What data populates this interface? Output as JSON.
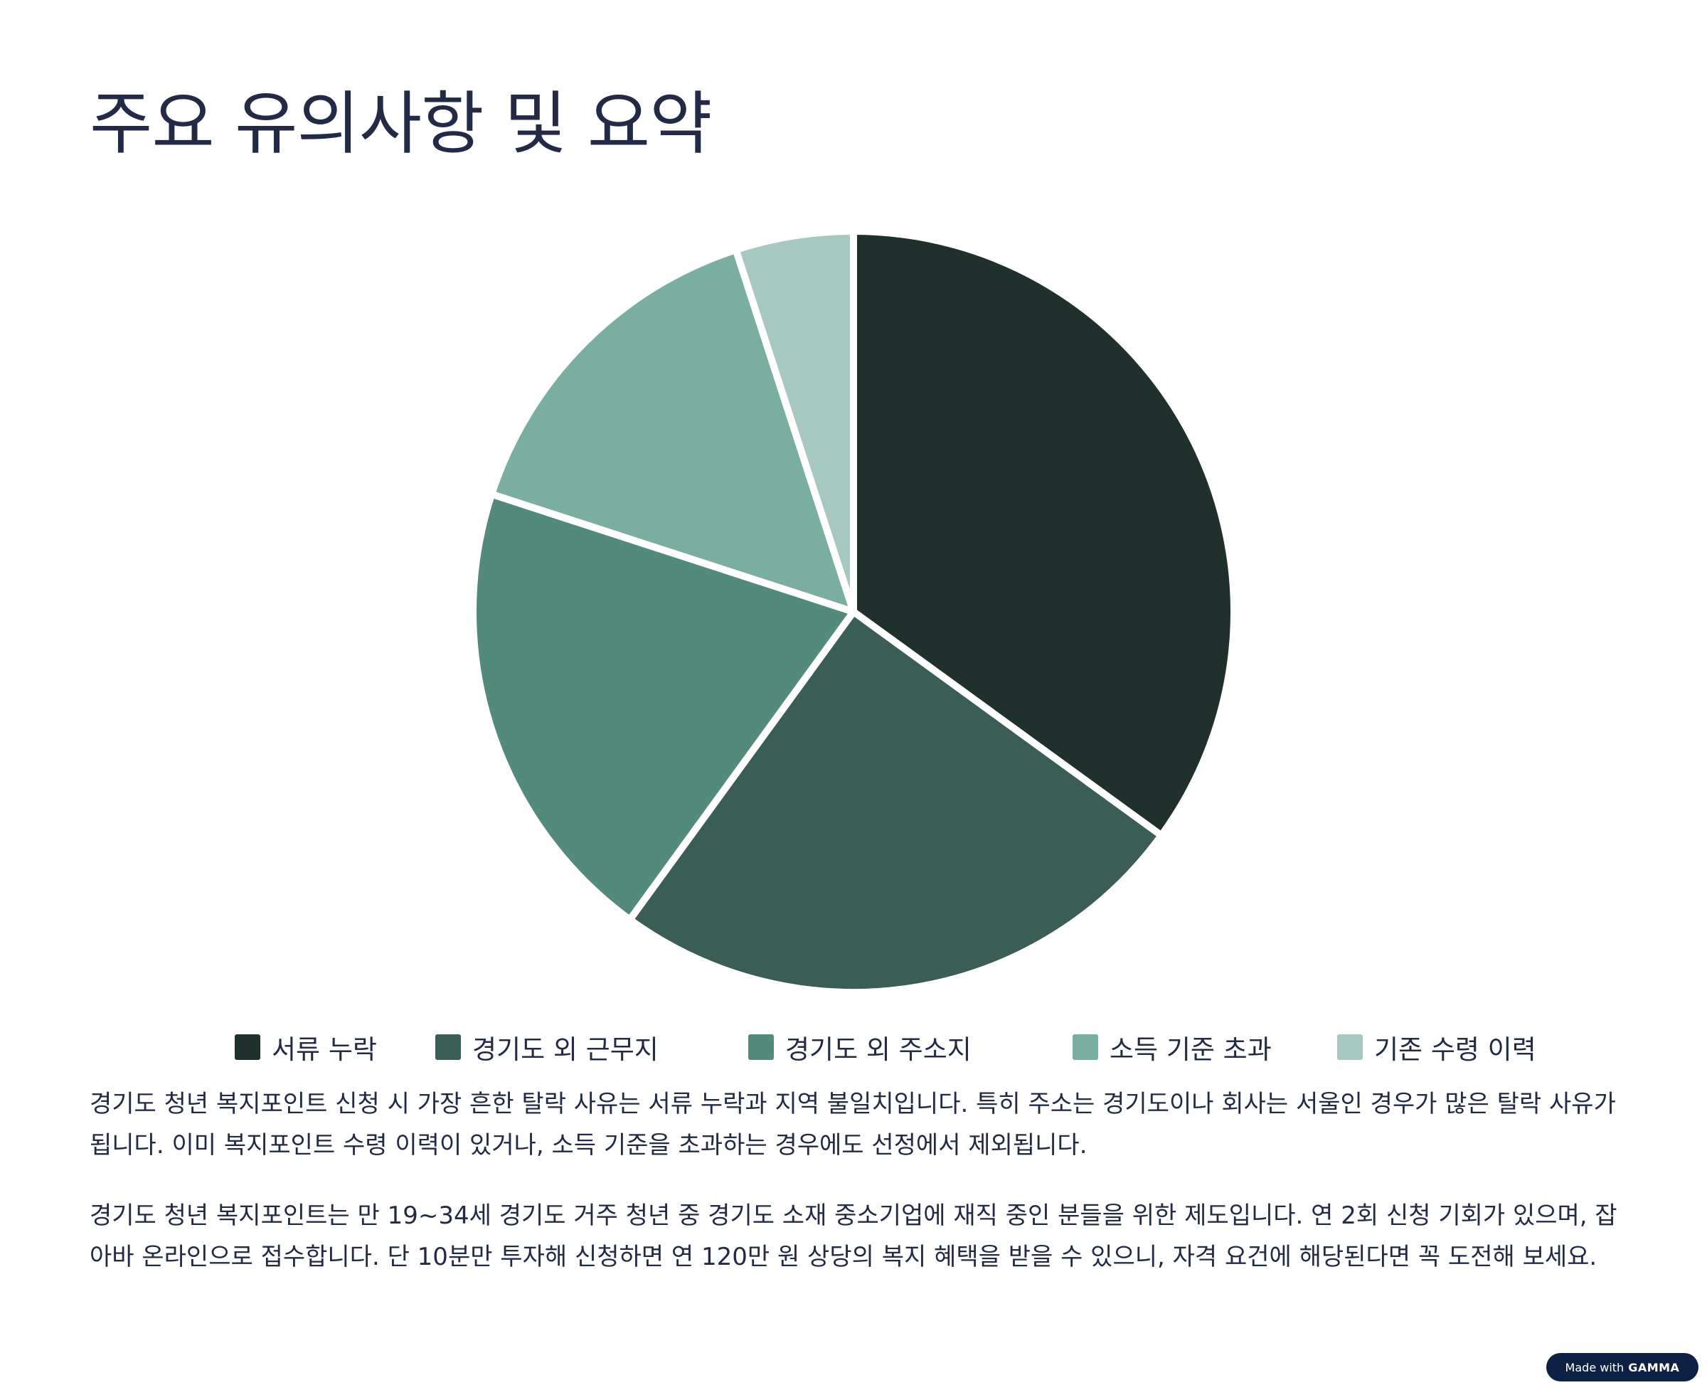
{
  "page": {
    "title": "주요 유의사항 및 요약",
    "paragraphs": [
      "경기도 청년 복지포인트 신청 시 가장 흔한 탈락 사유는 서류 누락과 지역 불일치입니다. 특히 주소는 경기도이나 회사는 서울인 경우가 많은 탈락 사유가 됩니다. 이미 복지포인트 수령 이력이 있거나, 소득 기준을 초과하는 경우에도 선정에서 제외됩니다.",
      "경기도 청년 복지포인트는 만 19~34세 경기도 거주 청년 중 경기도 소재 중소기업에 재직 중인 분들을 위한 제도입니다. 연 2회 신청 기회가 있으며, 잡아바 온라인으로 접수합니다. 단 10분만 투자해 신청하면 연 120만 원 상당의 복지 혜택을 받을 수 있으니, 자격 요건에 해당된다면 꼭 도전해 보세요."
    ]
  },
  "badge": {
    "prefix": "Made with",
    "brand": "GAMMA"
  },
  "chart_data": {
    "type": "pie",
    "start_angle_deg": 0,
    "direction": "clockwise",
    "title": "",
    "legend_position": "bottom",
    "slices": [
      {
        "label": "서류 누락",
        "value": 35,
        "color": "#20302c"
      },
      {
        "label": "경기도 외 근무지",
        "value": 25,
        "color": "#3a5d55"
      },
      {
        "label": "경기도 외 주소지",
        "value": 20,
        "color": "#548a7c"
      },
      {
        "label": "소득 기준 초과",
        "value": 15,
        "color": "#7aaea0"
      },
      {
        "label": "기존 수령 이력",
        "value": 5,
        "color": "#a6c8c0"
      }
    ]
  }
}
